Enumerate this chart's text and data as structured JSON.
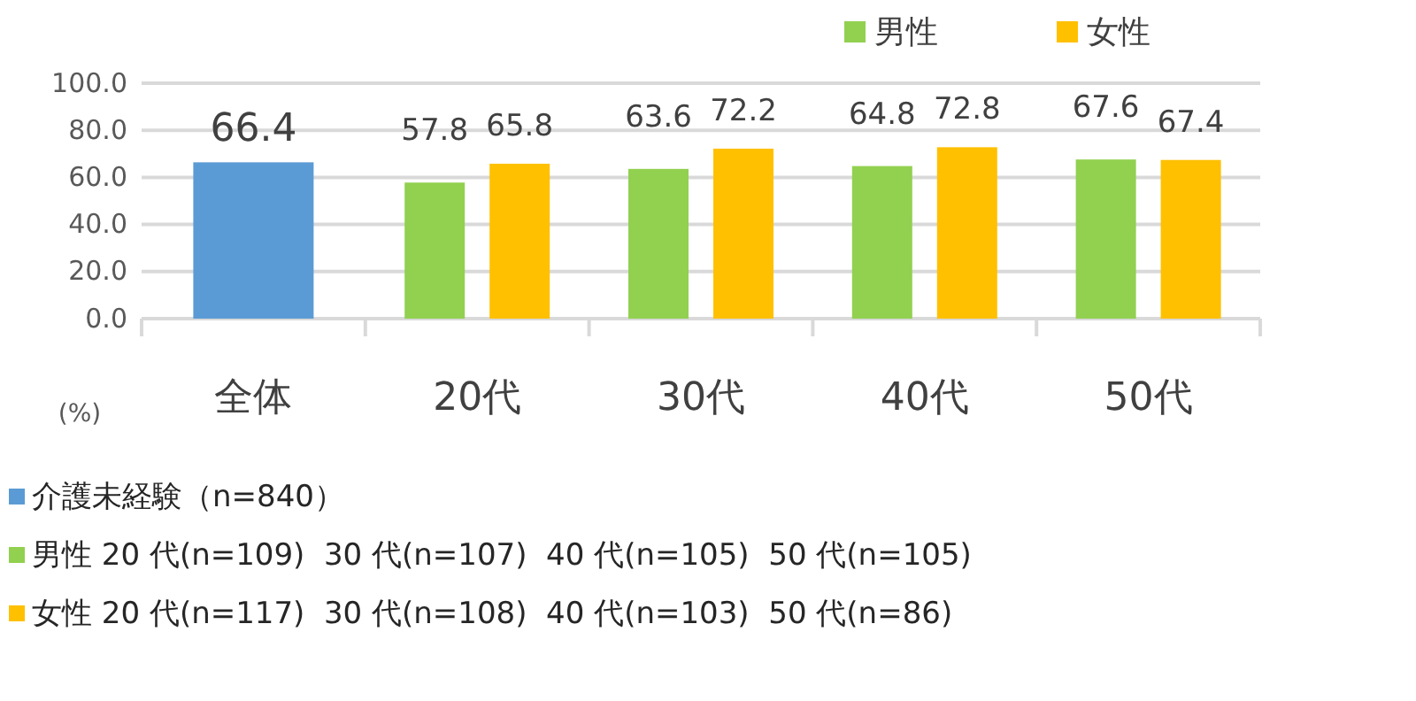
{
  "chart_data": {
    "type": "bar",
    "categories": [
      "全体",
      "20代",
      "30代",
      "40代",
      "50代"
    ],
    "series": [
      {
        "color": "#5b9bd5",
        "values": [
          66.4,
          null,
          null,
          null,
          null
        ]
      },
      {
        "name": "男性",
        "color": "#92d050",
        "values": [
          null,
          57.8,
          63.6,
          64.8,
          67.6
        ]
      },
      {
        "name": "女性",
        "color": "#ffc000",
        "values": [
          null,
          65.8,
          72.2,
          72.8,
          67.4
        ]
      }
    ],
    "ylim": [
      0,
      100
    ],
    "yticks": [
      {
        "value": 0,
        "label": "0.0"
      },
      {
        "value": 20,
        "label": "20.0"
      },
      {
        "value": 40,
        "label": "40.0"
      },
      {
        "value": 60,
        "label": "60.0"
      },
      {
        "value": 80,
        "label": "80.0"
      },
      {
        "value": 100,
        "label": "100.0"
      }
    ],
    "ylabel": "(%)",
    "grid": "y",
    "legend": "top right",
    "data_labels": true,
    "annotations": [
      "介護未経験（n=840）",
      "男性 20 代(n=109)  30 代(n=107)  40 代(n=105)  50 代(n=105)",
      "女性 20 代(n=117)  30 代(n=108)  40 代(n=103)  50 代(n=86)"
    ]
  }
}
